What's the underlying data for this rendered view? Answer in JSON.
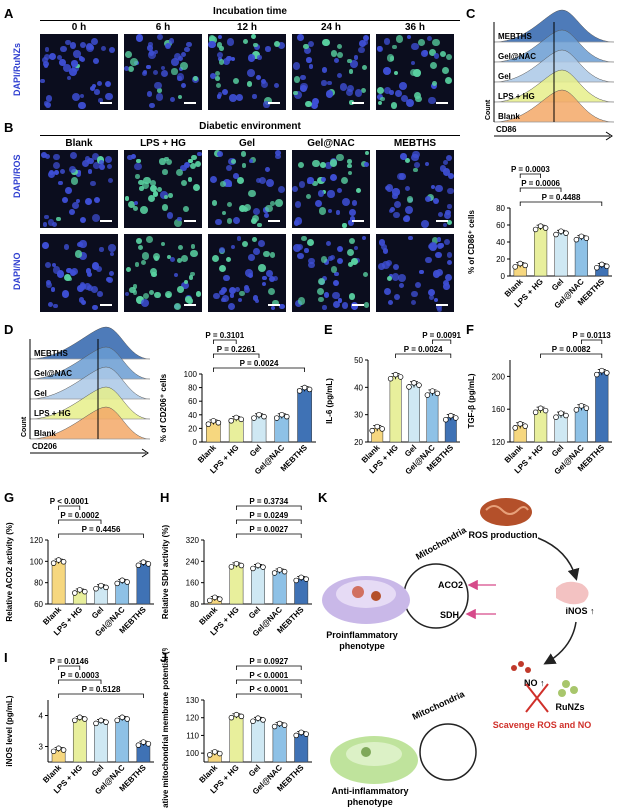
{
  "panels": {
    "A": {
      "label": "A",
      "title": "Incubation time",
      "stain": "DAPI/RuNZs",
      "times": [
        "0 h",
        "6 h",
        "12 h",
        "24 h",
        "36 h"
      ]
    },
    "B": {
      "label": "B",
      "title": "Diabetic environment",
      "groups": [
        "Blank",
        "LPS + HG",
        "Gel",
        "Gel@NAC",
        "MEBTHS"
      ],
      "rows": [
        "DAPI/ROS",
        "DAPI/NO"
      ]
    },
    "C": {
      "label": "C",
      "histo_labels": [
        "MEBTHS",
        "Gel@NAC",
        "Gel",
        "LPS + HG",
        "Blank"
      ],
      "marker": "CD86",
      "count": "Count"
    },
    "D": {
      "label": "D",
      "histo_labels": [
        "MEBTHS",
        "Gel@NAC",
        "Gel",
        "LPS + HG",
        "Blank"
      ],
      "marker": "CD206",
      "count": "Count"
    },
    "E": {
      "label": "E"
    },
    "F": {
      "label": "F"
    },
    "G": {
      "label": "G"
    },
    "H": {
      "label": "H"
    },
    "I": {
      "label": "I"
    },
    "J": {
      "label": "J"
    },
    "K": {
      "label": "K",
      "texts": {
        "ros": "ROS production",
        "mito1": "Mitochondria",
        "aco2": "ACO2",
        "sdh": "SDH",
        "inos": "iNOS ↑",
        "pro": "Proinflammatory",
        "pro2": "phenotype",
        "no": "NO ↑",
        "runzs": "RuNZs",
        "scav": "Scavenge ROS and NO",
        "mito2": "Mitochondria",
        "anti": "Anti-inflammatory",
        "anti2": "phenotype"
      }
    }
  },
  "chart_data": [
    {
      "id": "C",
      "type": "bar",
      "ylabel": "% of CD86⁺ cells",
      "categories": [
        "Blank",
        "LPS + HG",
        "Gel",
        "Gel@NAC",
        "MEBTHS"
      ],
      "values": [
        13,
        57,
        51,
        45,
        12
      ],
      "ylim": [
        0,
        80
      ],
      "yticks": [
        0,
        20,
        40,
        60,
        80
      ],
      "colors": [
        "#f6d77f",
        "#e8ef9c",
        "#cfe8f3",
        "#8ec1e6",
        "#3f72b5"
      ],
      "sig": [
        {
          "a": 0,
          "b": 1,
          "text": "P = 0.0003"
        },
        {
          "a": 0,
          "b": 2,
          "text": "P = 0.0006"
        },
        {
          "a": 0,
          "b": 4,
          "text": "P = 0.4488"
        }
      ]
    },
    {
      "id": "D",
      "type": "bar",
      "ylabel": "% of CD206⁺ cells",
      "categories": [
        "Blank",
        "LPS + HG",
        "Gel",
        "Gel@NAC",
        "MEBTHS"
      ],
      "values": [
        29,
        34,
        38,
        38,
        78
      ],
      "ylim": [
        0,
        100
      ],
      "yticks": [
        0,
        20,
        40,
        60,
        80,
        100
      ],
      "colors": [
        "#f6d77f",
        "#e8ef9c",
        "#cfe8f3",
        "#8ec1e6",
        "#3f72b5"
      ],
      "sig": [
        {
          "a": 0,
          "b": 1,
          "text": "P = 0.3101"
        },
        {
          "a": 0,
          "b": 2,
          "text": "P = 0.2261"
        },
        {
          "a": 0,
          "b": 4,
          "text": "P = 0.0024"
        }
      ]
    },
    {
      "id": "E",
      "type": "bar",
      "ylabel": "IL-6 (pg/mL)",
      "categories": [
        "Blank",
        "LPS + HG",
        "Gel",
        "Gel@NAC",
        "MEBTHS"
      ],
      "values": [
        25,
        44,
        41,
        38,
        29
      ],
      "ylim": [
        20,
        50
      ],
      "yticks": [
        20,
        30,
        40,
        50
      ],
      "colors": [
        "#f6d77f",
        "#e8ef9c",
        "#cfe8f3",
        "#8ec1e6",
        "#3f72b5"
      ],
      "sig": [
        {
          "a": 3,
          "b": 4,
          "text": "P = 0.0091"
        },
        {
          "a": 1,
          "b": 4,
          "text": "P = 0.0024"
        }
      ]
    },
    {
      "id": "F",
      "type": "bar",
      "ylabel": "TGF-β (pg/mL)",
      "categories": [
        "Blank",
        "LPS + HG",
        "Gel",
        "Gel@NAC",
        "MEBTHS"
      ],
      "values": [
        140,
        159,
        153,
        162,
        205
      ],
      "ylim": [
        120,
        220
      ],
      "yticks": [
        120,
        160,
        200
      ],
      "colors": [
        "#f6d77f",
        "#e8ef9c",
        "#cfe8f3",
        "#8ec1e6",
        "#3f72b5"
      ],
      "sig": [
        {
          "a": 3,
          "b": 4,
          "text": "P = 0.0113"
        },
        {
          "a": 1,
          "b": 4,
          "text": "P = 0.0082"
        }
      ]
    },
    {
      "id": "G",
      "type": "bar",
      "ylabel": "Relative ACO2 activity (%)",
      "categories": [
        "Blank",
        "LPS + HG",
        "Gel",
        "Gel@NAC",
        "MEBTHS"
      ],
      "values": [
        100,
        72,
        76,
        81,
        98
      ],
      "ylim": [
        60,
        120
      ],
      "yticks": [
        60,
        80,
        100,
        120
      ],
      "colors": [
        "#f6d77f",
        "#e8ef9c",
        "#cfe8f3",
        "#8ec1e6",
        "#3f72b5"
      ],
      "sig": [
        {
          "a": 0,
          "b": 1,
          "text": "P < 0.0001"
        },
        {
          "a": 0,
          "b": 2,
          "text": "P = 0.0002"
        },
        {
          "a": 0,
          "b": 4,
          "text": "P = 0.4456"
        }
      ]
    },
    {
      "id": "H",
      "type": "bar",
      "ylabel": "Relative SDH activity (%)",
      "categories": [
        "Blank",
        "LPS + HG",
        "Gel",
        "Gel@NAC",
        "MEBTHS"
      ],
      "values": [
        100,
        226,
        220,
        203,
        175
      ],
      "ylim": [
        80,
        320
      ],
      "yticks": [
        80,
        160,
        240,
        320
      ],
      "colors": [
        "#f6d77f",
        "#e8ef9c",
        "#cfe8f3",
        "#8ec1e6",
        "#3f72b5"
      ],
      "sig": [
        {
          "a": 1,
          "b": 4,
          "text": "P = 0.3734"
        },
        {
          "a": 1,
          "b": 4,
          "text": "P = 0.0249"
        },
        {
          "a": 1,
          "b": 4,
          "text": "P = 0.0027"
        }
      ]
    },
    {
      "id": "I",
      "type": "bar",
      "ylabel": "iNOS level (pg/mL)",
      "categories": [
        "Blank",
        "LPS + HG",
        "Gel",
        "Gel@NAC",
        "MEBTHS"
      ],
      "values": [
        2.9,
        3.9,
        3.8,
        3.9,
        3.1
      ],
      "ylim": [
        2.5,
        4.5
      ],
      "yticks": [
        3,
        4
      ],
      "colors": [
        "#f6d77f",
        "#e8ef9c",
        "#cfe8f3",
        "#8ec1e6",
        "#3f72b5"
      ],
      "sig": [
        {
          "a": 0,
          "b": 1,
          "text": "P = 0.0146"
        },
        {
          "a": 0,
          "b": 2,
          "text": "P = 0.0003"
        },
        {
          "a": 0,
          "b": 4,
          "text": "P = 0.5128"
        }
      ]
    },
    {
      "id": "J",
      "type": "bar",
      "ylabel": "Relative mitochondrial membrane potential (%)",
      "categories": [
        "Blank",
        "LPS + HG",
        "Gel",
        "Gel@NAC",
        "MEBTHS"
      ],
      "values": [
        100,
        121,
        119,
        116,
        111
      ],
      "ylim": [
        95,
        130
      ],
      "yticks": [
        100,
        110,
        120,
        130
      ],
      "colors": [
        "#f6d77f",
        "#e8ef9c",
        "#cfe8f3",
        "#8ec1e6",
        "#3f72b5"
      ],
      "sig": [
        {
          "a": 1,
          "b": 4,
          "text": "P = 0.0927"
        },
        {
          "a": 1,
          "b": 4,
          "text": "P < 0.0001"
        },
        {
          "a": 1,
          "b": 4,
          "text": "P < 0.0001"
        }
      ]
    }
  ]
}
